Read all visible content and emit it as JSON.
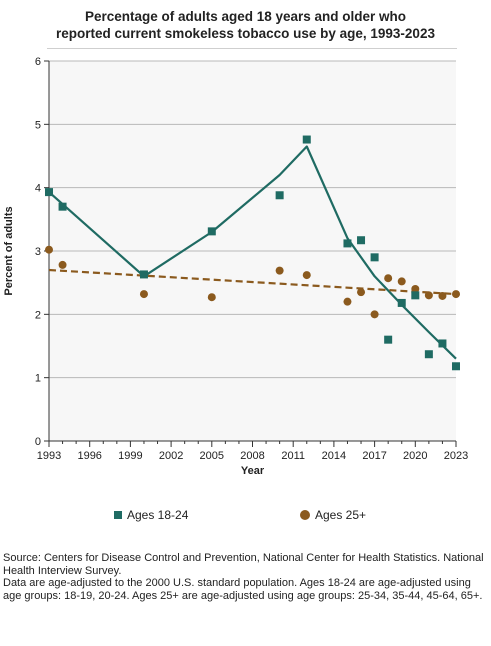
{
  "title_lines": [
    "Percentage of adults aged 18 years and older who",
    "reported current smokeless tobacco use by age, 1993-2023"
  ],
  "source_lines": [
    "Source: Centers for Disease Control and Prevention, National Center for Health Statistics. National Health Interview Survey.",
    "Data are age-adjusted to the 2000 U.S. standard population. Ages 18-24 are age-adjusted using age groups: 18-19, 20-24. Ages 25+ are age-adjusted using age groups: 25-34, 35-44, 45-64, 65+."
  ],
  "colors": {
    "series_18_24": "#1f6b63",
    "series_25_plus": "#8b5a1e",
    "plot_bg": "#f7f7f7",
    "grid": "#b9b9b9"
  },
  "chart_data": {
    "type": "scatter",
    "title": "Percentage of adults aged 18 years and older who reported current smokeless tobacco use by age, 1993-2023",
    "xlabel": "Year",
    "ylabel": "Percent of adults",
    "xlim": [
      1993,
      2023
    ],
    "ylim": [
      0,
      6
    ],
    "x_ticks": [
      "1993",
      "1996",
      "1999",
      "2002",
      "2005",
      "2008",
      "2011",
      "2014",
      "2017",
      "2020",
      "2023"
    ],
    "y_ticks": [
      "0",
      "1",
      "2",
      "3",
      "4",
      "5",
      "6"
    ],
    "grid": "horizontal",
    "legend_position": "bottom",
    "series": [
      {
        "name": "Ages 18-24",
        "marker": "square",
        "points": [
          {
            "x": 1993,
            "y": 3.93
          },
          {
            "x": 1994,
            "y": 3.7
          },
          {
            "x": 2000,
            "y": 2.63
          },
          {
            "x": 2005,
            "y": 3.31
          },
          {
            "x": 2010,
            "y": 3.88
          },
          {
            "x": 2012,
            "y": 4.76
          },
          {
            "x": 2015,
            "y": 3.12
          },
          {
            "x": 2016,
            "y": 3.17
          },
          {
            "x": 2017,
            "y": 2.9
          },
          {
            "x": 2018,
            "y": 1.6
          },
          {
            "x": 2019,
            "y": 2.18
          },
          {
            "x": 2020,
            "y": 2.3
          },
          {
            "x": 2021,
            "y": 1.37
          },
          {
            "x": 2022,
            "y": 1.54
          },
          {
            "x": 2023,
            "y": 1.18
          }
        ],
        "trend": [
          {
            "x": 1993,
            "y": 3.93
          },
          {
            "x": 2000,
            "y": 2.6
          },
          {
            "x": 2005,
            "y": 3.3
          },
          {
            "x": 2010,
            "y": 4.2
          },
          {
            "x": 2012,
            "y": 4.65
          },
          {
            "x": 2015,
            "y": 3.2
          },
          {
            "x": 2017,
            "y": 2.6
          },
          {
            "x": 2019,
            "y": 2.15
          },
          {
            "x": 2021,
            "y": 1.72
          },
          {
            "x": 2023,
            "y": 1.3
          }
        ]
      },
      {
        "name": "Ages 25+",
        "marker": "circle",
        "points": [
          {
            "x": 1993,
            "y": 3.02
          },
          {
            "x": 1994,
            "y": 2.78
          },
          {
            "x": 2000,
            "y": 2.32
          },
          {
            "x": 2005,
            "y": 2.27
          },
          {
            "x": 2010,
            "y": 2.69
          },
          {
            "x": 2012,
            "y": 2.62
          },
          {
            "x": 2015,
            "y": 2.2
          },
          {
            "x": 2016,
            "y": 2.35
          },
          {
            "x": 2017,
            "y": 2.0
          },
          {
            "x": 2018,
            "y": 2.57
          },
          {
            "x": 2019,
            "y": 2.52
          },
          {
            "x": 2020,
            "y": 2.4
          },
          {
            "x": 2021,
            "y": 2.3
          },
          {
            "x": 2022,
            "y": 2.29
          },
          {
            "x": 2023,
            "y": 2.32
          }
        ],
        "trend": [
          {
            "x": 1993,
            "y": 2.7
          },
          {
            "x": 2023,
            "y": 2.32
          }
        ]
      }
    ]
  }
}
